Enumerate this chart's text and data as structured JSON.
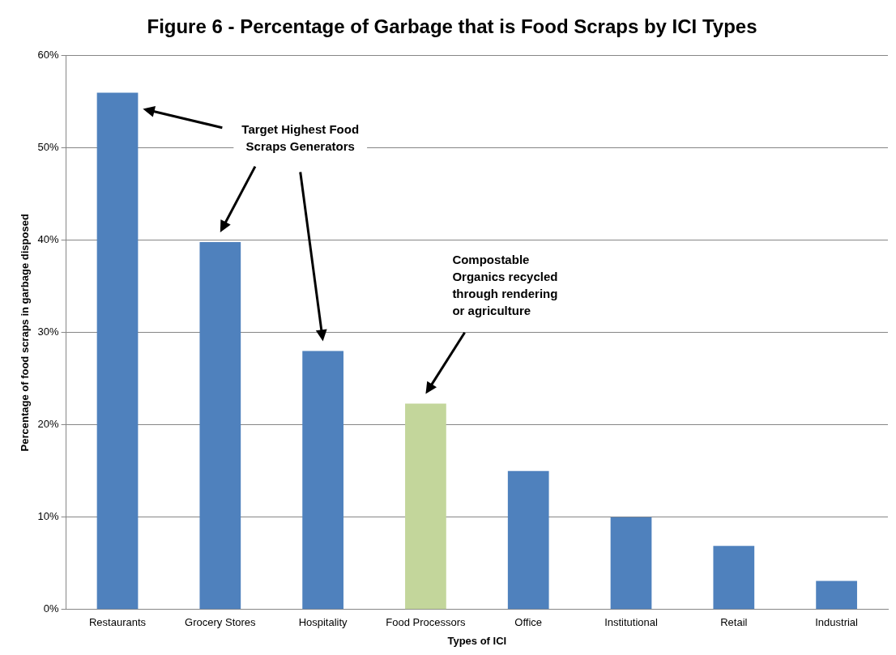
{
  "chart_data": {
    "type": "bar",
    "title": "Figure 6 - Percentage of Garbage that is Food Scraps by ICI Types",
    "xlabel": "Types of ICI",
    "ylabel": "Percentage of food scraps in garbage disposed",
    "categories": [
      "Restaurants",
      "Grocery Stores",
      "Hospitality",
      "Food Processors",
      "Office",
      "Institutional",
      "Retail",
      "Industrial"
    ],
    "values": [
      56,
      39.8,
      28,
      22.3,
      15,
      10,
      6.9,
      3.1
    ],
    "colors": [
      "#4f81bd",
      "#4f81bd",
      "#4f81bd",
      "#c3d69b",
      "#4f81bd",
      "#4f81bd",
      "#4f81bd",
      "#4f81bd"
    ],
    "ylim": [
      0,
      60
    ],
    "yticks": [
      {
        "value": 0,
        "label": "0%"
      },
      {
        "value": 10,
        "label": "10%"
      },
      {
        "value": 20,
        "label": "20%"
      },
      {
        "value": 30,
        "label": "30%"
      },
      {
        "value": 40,
        "label": "40%"
      },
      {
        "value": 50,
        "label": "50%"
      },
      {
        "value": 60,
        "label": "60%"
      }
    ],
    "grid": "y",
    "legend": false,
    "annotations": [
      "Target Highest Food\nScraps Generators",
      "Compostable\nOrganics recycled\nthrough rendering\nor agriculture"
    ]
  }
}
